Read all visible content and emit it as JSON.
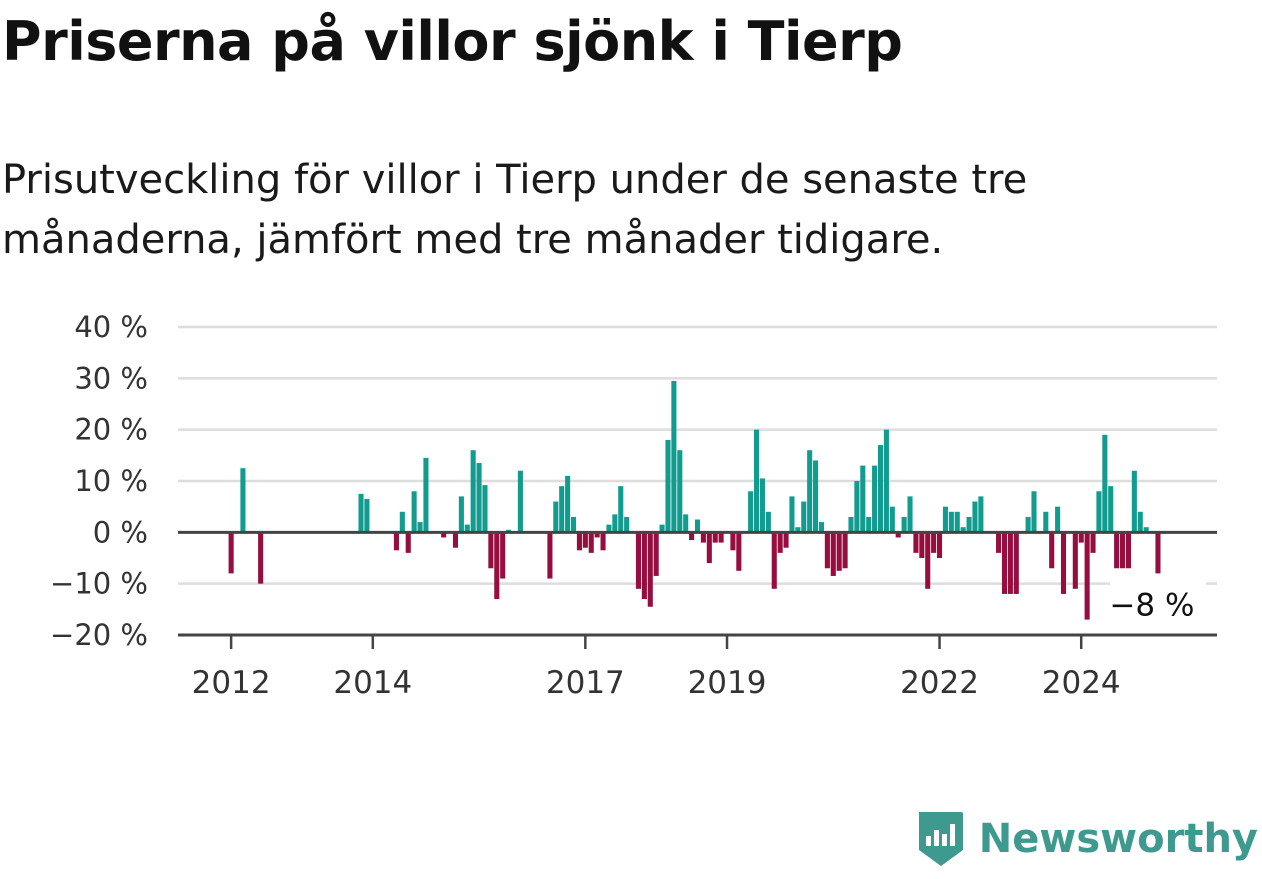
{
  "title": "Priserna på villor sjönk i Tierp",
  "subtitle": "Prisutveckling för villor i Tierp under de senaste tre månaderna, jämfört med tre månader tidigare.",
  "brand": {
    "name": "Newsworthy",
    "icon": "newsworthy-bar-chart-icon",
    "color": "#3e9a8f"
  },
  "colors": {
    "positive": "#129b8f",
    "negative": "#960d3f",
    "grid": "#dddddd",
    "axis": "#444444"
  },
  "chart_data": {
    "type": "bar",
    "unit": "%",
    "y_ticks": [
      "40 %",
      "30 %",
      "20 %",
      "10 %",
      "0 %",
      "−10 %",
      "−20 %"
    ],
    "y_tick_values": [
      40,
      30,
      20,
      10,
      0,
      -10,
      -20
    ],
    "ylim": [
      -20,
      40
    ],
    "x_ticks": [
      "2012",
      "2014",
      "2017",
      "2019",
      "2022",
      "2024"
    ],
    "x_tick_years": [
      2012,
      2014,
      2017,
      2019,
      2022,
      2024
    ],
    "xlim": [
      "2011-04",
      "2025-12"
    ],
    "grid": true,
    "annotation": {
      "label": "−8 %",
      "x": "2025-02",
      "value": -8
    },
    "series": [
      {
        "values": [
          [
            "2012-01",
            -8
          ],
          [
            "2012-03",
            12.5
          ],
          [
            "2012-06",
            -10
          ],
          [
            "2013-11",
            7.5
          ],
          [
            "2013-12",
            6.5
          ],
          [
            "2014-05",
            -3.5
          ],
          [
            "2014-06",
            4
          ],
          [
            "2014-07",
            -4
          ],
          [
            "2014-08",
            8
          ],
          [
            "2014-09",
            2
          ],
          [
            "2014-10",
            14.5
          ],
          [
            "2015-01",
            -1
          ],
          [
            "2015-03",
            -3
          ],
          [
            "2015-04",
            7
          ],
          [
            "2015-05",
            1.5
          ],
          [
            "2015-06",
            16
          ],
          [
            "2015-07",
            13.5
          ],
          [
            "2015-08",
            9.2
          ],
          [
            "2015-09",
            -7
          ],
          [
            "2015-10",
            -13
          ],
          [
            "2015-11",
            -9
          ],
          [
            "2015-12",
            0.5
          ],
          [
            "2016-02",
            12
          ],
          [
            "2016-07",
            -9
          ],
          [
            "2016-08",
            6
          ],
          [
            "2016-09",
            9
          ],
          [
            "2016-10",
            11
          ],
          [
            "2016-11",
            3
          ],
          [
            "2016-12",
            -3.5
          ],
          [
            "2017-01",
            -3
          ],
          [
            "2017-02",
            -4
          ],
          [
            "2017-03",
            -1
          ],
          [
            "2017-04",
            -3.5
          ],
          [
            "2017-05",
            1.5
          ],
          [
            "2017-06",
            3.5
          ],
          [
            "2017-07",
            9
          ],
          [
            "2017-08",
            3
          ],
          [
            "2017-10",
            -11
          ],
          [
            "2017-11",
            -13
          ],
          [
            "2017-12",
            -14.5
          ],
          [
            "2018-01",
            -8.5
          ],
          [
            "2018-02",
            1.5
          ],
          [
            "2018-03",
            18
          ],
          [
            "2018-04",
            29.5
          ],
          [
            "2018-05",
            16
          ],
          [
            "2018-06",
            3.5
          ],
          [
            "2018-07",
            -1.5
          ],
          [
            "2018-08",
            2.5
          ],
          [
            "2018-09",
            -2
          ],
          [
            "2018-10",
            -6
          ],
          [
            "2018-11",
            -2
          ],
          [
            "2018-12",
            -2
          ],
          [
            "2019-02",
            -3.5
          ],
          [
            "2019-03",
            -7.5
          ],
          [
            "2019-05",
            8
          ],
          [
            "2019-06",
            20
          ],
          [
            "2019-07",
            10.5
          ],
          [
            "2019-08",
            4
          ],
          [
            "2019-09",
            -11
          ],
          [
            "2019-10",
            -4
          ],
          [
            "2019-11",
            -3
          ],
          [
            "2019-12",
            7
          ],
          [
            "2020-01",
            1
          ],
          [
            "2020-02",
            6
          ],
          [
            "2020-03",
            16
          ],
          [
            "2020-04",
            14
          ],
          [
            "2020-05",
            2
          ],
          [
            "2020-06",
            -7
          ],
          [
            "2020-07",
            -8.5
          ],
          [
            "2020-08",
            -7.5
          ],
          [
            "2020-09",
            -7
          ],
          [
            "2020-10",
            3
          ],
          [
            "2020-11",
            10
          ],
          [
            "2020-12",
            13
          ],
          [
            "2021-01",
            3
          ],
          [
            "2021-02",
            13
          ],
          [
            "2021-03",
            17
          ],
          [
            "2021-04",
            20
          ],
          [
            "2021-05",
            5
          ],
          [
            "2021-06",
            -1
          ],
          [
            "2021-07",
            3
          ],
          [
            "2021-08",
            7
          ],
          [
            "2021-09",
            -4
          ],
          [
            "2021-10",
            -5
          ],
          [
            "2021-11",
            -11
          ],
          [
            "2021-12",
            -4
          ],
          [
            "2022-01",
            -5
          ],
          [
            "2022-02",
            5
          ],
          [
            "2022-03",
            4
          ],
          [
            "2022-04",
            4
          ],
          [
            "2022-05",
            1
          ],
          [
            "2022-06",
            3
          ],
          [
            "2022-07",
            6
          ],
          [
            "2022-08",
            7
          ],
          [
            "2022-11",
            -4
          ],
          [
            "2022-12",
            -12
          ],
          [
            "2023-01",
            -12
          ],
          [
            "2023-02",
            -12
          ],
          [
            "2023-04",
            3
          ],
          [
            "2023-05",
            8
          ],
          [
            "2023-07",
            4
          ],
          [
            "2023-08",
            -7
          ],
          [
            "2023-09",
            5
          ],
          [
            "2023-10",
            -12
          ],
          [
            "2023-12",
            -11
          ],
          [
            "2024-01",
            -2
          ],
          [
            "2024-02",
            -17
          ],
          [
            "2024-03",
            -4
          ],
          [
            "2024-04",
            8
          ],
          [
            "2024-05",
            19
          ],
          [
            "2024-06",
            9
          ],
          [
            "2024-07",
            -7
          ],
          [
            "2024-08",
            -7
          ],
          [
            "2024-09",
            -7
          ],
          [
            "2024-10",
            12
          ],
          [
            "2024-11",
            4
          ],
          [
            "2024-12",
            1
          ],
          [
            "2025-02",
            -8
          ]
        ]
      }
    ]
  }
}
